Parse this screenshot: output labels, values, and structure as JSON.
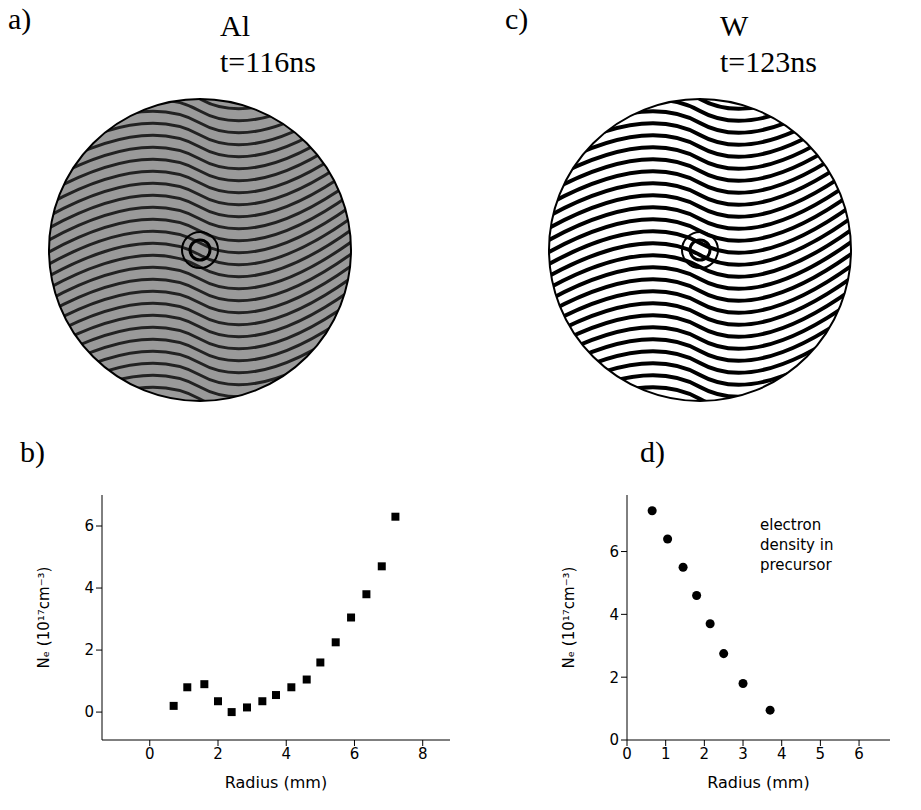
{
  "images": [
    {
      "panel": "a)",
      "title": "Al",
      "subtitle": "t=116ns"
    },
    {
      "panel": "c)",
      "title": "W",
      "subtitle": "t=123ns"
    }
  ],
  "chart_data": [
    {
      "panel": "b)",
      "type": "scatter",
      "x": [
        0.7,
        1.1,
        1.6,
        2.0,
        2.4,
        2.85,
        3.3,
        3.7,
        4.15,
        4.6,
        5.0,
        5.45,
        5.9,
        6.35,
        6.8,
        7.2
      ],
      "values": [
        0.2,
        0.8,
        0.9,
        0.35,
        0.0,
        0.15,
        0.35,
        0.55,
        0.8,
        1.05,
        1.6,
        2.25,
        3.05,
        3.8,
        4.7,
        6.3
      ],
      "x_label": "Radius (mm)",
      "y_label": "Nₑ (10¹⁷cm⁻³)",
      "xlim": [
        -1.4,
        8.8
      ],
      "xticks": [
        0,
        2,
        4,
        6,
        8
      ],
      "ylim": [
        -0.9,
        7
      ],
      "yticks": [
        0,
        2,
        4,
        6
      ],
      "color": "#000000",
      "marker": "square",
      "grid": false
    },
    {
      "panel": "d)",
      "type": "scatter",
      "x": [
        0.65,
        1.05,
        1.45,
        1.8,
        2.15,
        2.5,
        3.0,
        3.7
      ],
      "values": [
        7.3,
        6.4,
        5.5,
        4.6,
        3.7,
        2.75,
        1.8,
        0.95
      ],
      "x_label": "Radius (mm)",
      "y_label": "Nₑ (10¹⁷cm⁻³)",
      "annotation": "electron density in precursor",
      "xlim": [
        0,
        6.8
      ],
      "xticks": [
        0,
        1,
        2,
        3,
        4,
        5,
        6
      ],
      "ylim": [
        0,
        7.8
      ],
      "yticks": [
        0,
        2,
        4,
        6
      ],
      "color": "#000000",
      "marker": "circle",
      "grid": false
    }
  ]
}
